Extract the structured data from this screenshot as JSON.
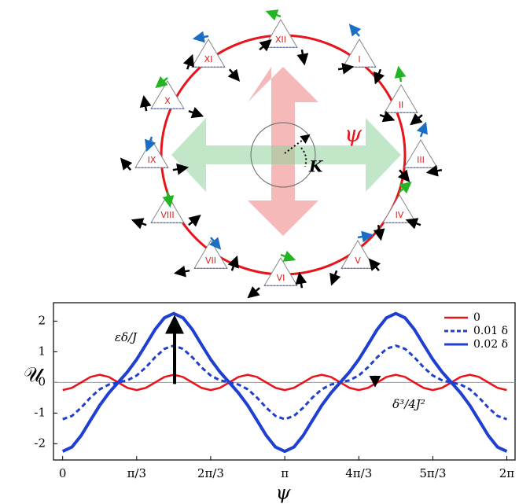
{
  "diagram": {
    "nodes": [
      "XII",
      "I",
      "II",
      "III",
      "IV",
      "V",
      "VI",
      "VII",
      "VIII",
      "IX",
      "X",
      "XI"
    ],
    "psi_label": "ψ",
    "k_label": "K"
  },
  "chart_data": {
    "type": "line",
    "x": [
      0,
      0.131,
      0.262,
      0.393,
      0.524,
      0.654,
      0.785,
      0.916,
      1.047,
      1.178,
      1.309,
      1.44,
      1.571,
      1.702,
      1.833,
      1.963,
      2.094,
      2.225,
      2.356,
      2.487,
      2.618,
      2.749,
      2.88,
      3.011,
      3.142,
      3.272,
      3.403,
      3.534,
      3.665,
      3.796,
      3.927,
      4.058,
      4.189,
      4.32,
      4.451,
      4.581,
      4.712,
      4.843,
      4.974,
      5.105,
      5.236,
      5.367,
      5.498,
      5.629,
      5.76,
      5.89,
      6.021,
      6.152,
      6.283
    ],
    "series": [
      {
        "name": "0",
        "color": "#e8141b",
        "values": [
          -0.25,
          -0.177,
          0,
          0.177,
          0.25,
          0.177,
          0,
          -0.177,
          -0.25,
          -0.177,
          0,
          0.177,
          0.25,
          0.177,
          0,
          -0.177,
          -0.25,
          -0.177,
          0,
          0.177,
          0.25,
          0.177,
          0,
          -0.177,
          -0.25,
          -0.177,
          0,
          0.177,
          0.25,
          0.177,
          0,
          -0.177,
          -0.25,
          -0.177,
          0,
          0.177,
          0.25,
          0.177,
          0,
          -0.177,
          -0.25,
          -0.177,
          0,
          0.177,
          0.25,
          0.177,
          0,
          -0.177,
          -0.25
        ]
      },
      {
        "name": "0.01 δ",
        "color": "#1f3fd0",
        "style": "dashed",
        "values": [
          -1.2,
          -1.095,
          -0.823,
          -0.495,
          -0.225,
          -0.069,
          0,
          0.069,
          0.225,
          0.495,
          0.823,
          1.095,
          1.2,
          1.095,
          0.823,
          0.495,
          0.225,
          0.069,
          0,
          -0.069,
          -0.225,
          -0.495,
          -0.823,
          -1.095,
          -1.2,
          -1.095,
          -0.823,
          -0.495,
          -0.225,
          -0.069,
          0,
          0.069,
          0.225,
          0.495,
          0.823,
          1.095,
          1.2,
          1.095,
          0.823,
          0.495,
          0.225,
          0.069,
          0,
          -0.069,
          -0.225,
          -0.495,
          -0.823,
          -1.095,
          -1.2
        ]
      },
      {
        "name": "0.02 δ",
        "color": "#1f3fd0",
        "style": "solid",
        "values": [
          -2.25,
          -2.109,
          -1.732,
          -1.237,
          -0.75,
          -0.341,
          0,
          0.341,
          0.75,
          1.237,
          1.732,
          2.109,
          2.25,
          2.109,
          1.732,
          1.237,
          0.75,
          0.341,
          0,
          -0.341,
          -0.75,
          -1.237,
          -1.732,
          -2.109,
          -2.25,
          -2.109,
          -1.732,
          -1.237,
          -0.75,
          -0.341,
          0,
          0.341,
          0.75,
          1.237,
          1.732,
          2.109,
          2.25,
          2.109,
          1.732,
          1.237,
          0.75,
          0.341,
          0,
          -0.341,
          -0.75,
          -1.237,
          -1.732,
          -2.109,
          -2.25
        ]
      }
    ],
    "xlim": [
      -0.13,
      6.4
    ],
    "ylim": [
      -2.53,
      2.6
    ],
    "xticks": [
      0,
      {
        "value": 1.047,
        "label": "π/3"
      },
      {
        "value": 2.094,
        "label": "2π/3"
      },
      {
        "value": 3.142,
        "label": "π"
      },
      {
        "value": 4.189,
        "label": "4π/3"
      },
      {
        "value": 5.236,
        "label": "5π/3"
      },
      {
        "value": 6.283,
        "label": "2π"
      }
    ],
    "yticks": [
      -2,
      -1,
      0,
      1,
      2
    ],
    "xlabel": "ψ",
    "ylabel": "𝒰",
    "legend": "upper right",
    "annotations": [
      "εδ/J",
      "δ³/4J²"
    ]
  }
}
